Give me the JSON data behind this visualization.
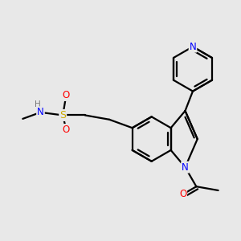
{
  "bg_color": "#e8e8e8",
  "bond_color": "#000000",
  "bond_width": 1.6,
  "atom_colors": {
    "N": "#0000ff",
    "O": "#ff0000",
    "S": "#ccaa00",
    "H": "#777777",
    "C": "#000000"
  },
  "font_size": 8.5,
  "figsize": [
    3.0,
    3.0
  ],
  "dpi": 100
}
